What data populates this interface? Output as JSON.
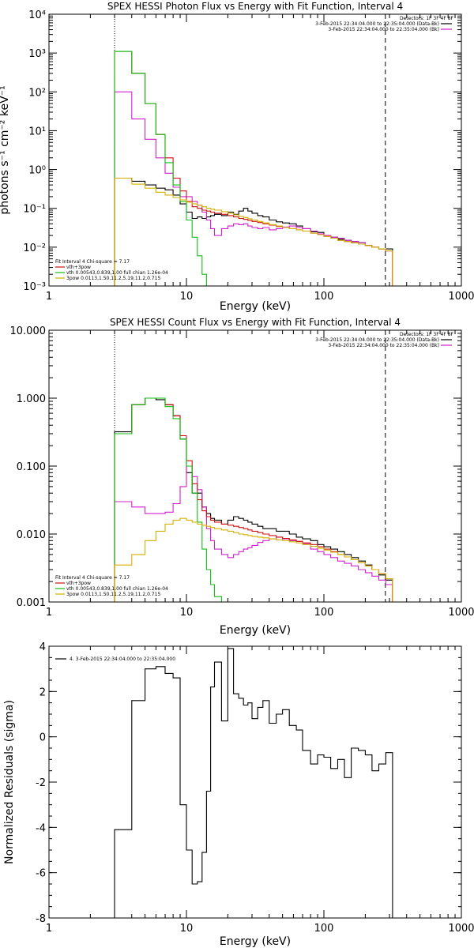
{
  "chart_data": [
    {
      "type": "line",
      "title": "SPEX HESSI Photon Flux vs Energy with Fit Function, Interval 4",
      "xlabel": "Energy (keV)",
      "ylabel": "photons s⁻¹ cm⁻² keV⁻¹",
      "xscale": "log",
      "yscale": "log",
      "xlim": [
        1,
        1000
      ],
      "ylim": [
        0.001,
        10000
      ],
      "xticks": [
        1,
        10,
        100,
        1000
      ],
      "xtick_labels": [
        "1",
        "10",
        "100",
        "1000"
      ],
      "yticks": [
        0.001,
        0.01,
        0.1,
        1,
        10,
        100,
        1000,
        10000
      ],
      "ytick_labels": [
        "10⁻³",
        "10⁻²",
        "10⁻¹",
        "10⁰",
        "10¹",
        "10²",
        "10³",
        "10⁴"
      ],
      "vlines": [
        {
          "x": 3,
          "style": "dotted"
        },
        {
          "x": 280,
          "style": "dashed"
        }
      ],
      "legend_top": {
        "header": "Detectors: 1F 3F 4F 8F",
        "entries": [
          {
            "text": "3-Feb-2015 22:34:04.000 to 22:35:04.000 (Data-Bk)",
            "color": "#000000"
          },
          {
            "text": "3-Feb-2015 22:34:04.000 to 22:35:04.000 (Bk)",
            "color": "#d020d0"
          }
        ]
      },
      "legend_bottom": {
        "header": "Fit Interval 4   Chi-square = 7.17",
        "entries": [
          {
            "text": "vth+3pow",
            "color": "#d01010"
          },
          {
            "text": "vth 0.00543,0.839,1.00  full chian 1.26e-04",
            "color": "#10c010"
          },
          {
            "text": "3pow 0.0113,1.50,11.2,5.19,11.2,0.715",
            "color": "#d4b000"
          }
        ]
      },
      "series": [
        {
          "name": "Data-Bk",
          "color": "#000000",
          "x": [
            3,
            4,
            5,
            6,
            7,
            8,
            9,
            10,
            11,
            12,
            13,
            14,
            15,
            16,
            18,
            20,
            22,
            24,
            26,
            28,
            30,
            33,
            36,
            40,
            45,
            50,
            56,
            63,
            70,
            80,
            90,
            100,
            112,
            126,
            141,
            158,
            178,
            200,
            224,
            251,
            282
          ],
          "y": [
            0.6,
            0.5,
            0.4,
            0.33,
            0.3,
            0.22,
            0.13,
            0.08,
            0.055,
            0.06,
            0.055,
            0.06,
            0.065,
            0.07,
            0.065,
            0.08,
            0.07,
            0.085,
            0.1,
            0.085,
            0.075,
            0.065,
            0.06,
            0.05,
            0.045,
            0.042,
            0.04,
            0.035,
            0.03,
            0.025,
            0.024,
            0.02,
            0.018,
            0.016,
            0.015,
            0.014,
            0.013,
            0.011,
            0.01,
            0.009,
            0.009
          ]
        },
        {
          "name": "Bk",
          "color": "#d020d0",
          "x": [
            3,
            4,
            5,
            6,
            7,
            8,
            9,
            10,
            11,
            12,
            13,
            14,
            15,
            16,
            18,
            20,
            22,
            24,
            26,
            28,
            30,
            33,
            36,
            40,
            45,
            50,
            56,
            63,
            70,
            80,
            90,
            100,
            112,
            126,
            141,
            158,
            178,
            200,
            224,
            251,
            282
          ],
          "y": [
            100,
            20,
            6,
            2,
            0.8,
            0.35,
            0.2,
            0.2,
            0.15,
            0.12,
            0.08,
            0.05,
            0.03,
            0.02,
            0.03,
            0.035,
            0.04,
            0.038,
            0.04,
            0.035,
            0.032,
            0.03,
            0.032,
            0.028,
            0.03,
            0.033,
            0.035,
            0.032,
            0.03,
            0.026,
            0.022,
            0.02,
            0.018,
            0.017,
            0.015,
            0.014,
            0.013,
            0.011,
            0.01,
            0.009,
            0.008
          ]
        },
        {
          "name": "vth+3pow",
          "color": "#d01010",
          "x": [
            3,
            4,
            5,
            6,
            7,
            8,
            9,
            10,
            11,
            12,
            13,
            14,
            15,
            16,
            18,
            20,
            22,
            24,
            26,
            28,
            30,
            33,
            36,
            40,
            45,
            50,
            56,
            63,
            70,
            80,
            90,
            100,
            112,
            126,
            141,
            158,
            178,
            200,
            224,
            251,
            282
          ],
          "y": [
            1100,
            300,
            50,
            8,
            2,
            0.6,
            0.28,
            0.15,
            0.11,
            0.1,
            0.09,
            0.085,
            0.08,
            0.075,
            0.07,
            0.065,
            0.06,
            0.055,
            0.052,
            0.049,
            0.046,
            0.043,
            0.04,
            0.037,
            0.034,
            0.032,
            0.03,
            0.028,
            0.026,
            0.023,
            0.021,
            0.019,
            0.017,
            0.015,
            0.014,
            0.013,
            0.012,
            0.011,
            0.01,
            0.009,
            0.008
          ]
        },
        {
          "name": "vth",
          "color": "#10c010",
          "x": [
            3,
            4,
            5,
            6,
            7,
            8,
            9,
            10,
            11,
            12,
            13,
            14
          ],
          "y": [
            1100,
            300,
            50,
            8,
            1.5,
            0.4,
            0.15,
            0.05,
            0.018,
            0.006,
            0.002,
            0.0007
          ]
        },
        {
          "name": "3pow",
          "color": "#d4b000",
          "x": [
            3,
            4,
            5,
            6,
            7,
            8,
            9,
            10,
            11,
            12,
            13,
            14,
            15,
            16,
            18,
            20,
            22,
            24,
            26,
            28,
            30,
            33,
            36,
            40,
            45,
            50,
            56,
            63,
            70,
            80,
            90,
            100,
            112,
            126,
            141,
            158,
            178,
            200,
            224,
            251,
            282
          ],
          "y": [
            0.6,
            0.42,
            0.33,
            0.26,
            0.22,
            0.19,
            0.165,
            0.145,
            0.13,
            0.12,
            0.11,
            0.1,
            0.095,
            0.09,
            0.082,
            0.075,
            0.068,
            0.062,
            0.058,
            0.054,
            0.05,
            0.046,
            0.042,
            0.038,
            0.035,
            0.032,
            0.03,
            0.028,
            0.026,
            0.023,
            0.021,
            0.019,
            0.017,
            0.015,
            0.014,
            0.013,
            0.012,
            0.011,
            0.01,
            0.009,
            0.008
          ]
        }
      ]
    },
    {
      "type": "line",
      "title": "SPEX HESSI Count Flux vs Energy with Fit Function, Interval 4",
      "xlabel": "Energy (keV)",
      "ylabel": "",
      "xscale": "log",
      "yscale": "log",
      "xlim": [
        1,
        1000
      ],
      "ylim": [
        0.001,
        10
      ],
      "xticks": [
        1,
        10,
        100,
        1000
      ],
      "xtick_labels": [
        "1",
        "10",
        "100",
        "1000"
      ],
      "yticks": [
        0.001,
        0.01,
        0.1,
        1,
        10
      ],
      "ytick_labels": [
        "0.001",
        "0.010",
        "0.100",
        "1.000",
        "10.000"
      ],
      "vlines": [
        {
          "x": 3,
          "style": "dotted"
        },
        {
          "x": 280,
          "style": "dashed"
        }
      ],
      "legend_top": {
        "header": "Detectors: 1F 3F 4F 8F",
        "entries": [
          {
            "text": "3-Feb-2015 22:34:04.000 to 22:35:04.000 (Data-Bk)",
            "color": "#000000"
          },
          {
            "text": "3-Feb-2015 22:34:04.000 to 22:35:04.000 (Bk)",
            "color": "#d020d0"
          }
        ]
      },
      "legend_bottom": {
        "header": "Fit Interval 4   Chi-square = 7.17",
        "entries": [
          {
            "text": "vth+3pow",
            "color": "#d01010"
          },
          {
            "text": "vth 0.00543,0.839,1.00  full chian 1.26e-04",
            "color": "#10c010"
          },
          {
            "text": "3pow 0.0113,1.50,11.2,5.19,11.2,0.715",
            "color": "#d4b000"
          }
        ]
      },
      "series": [
        {
          "name": "Data-Bk",
          "color": "#000000",
          "x": [
            3,
            4,
            5,
            6,
            7,
            8,
            9,
            10,
            11,
            12,
            13,
            14,
            15,
            16,
            18,
            20,
            22,
            24,
            26,
            28,
            30,
            33,
            36,
            40,
            45,
            50,
            56,
            63,
            70,
            80,
            90,
            100,
            112,
            126,
            141,
            158,
            178,
            200,
            224,
            251,
            282
          ],
          "y": [
            0.32,
            0.8,
            1.0,
            0.95,
            0.8,
            0.55,
            0.25,
            0.08,
            0.04,
            0.04,
            0.025,
            0.02,
            0.017,
            0.016,
            0.014,
            0.016,
            0.018,
            0.017,
            0.016,
            0.015,
            0.014,
            0.013,
            0.012,
            0.012,
            0.011,
            0.011,
            0.01,
            0.009,
            0.0085,
            0.008,
            0.007,
            0.0065,
            0.006,
            0.0055,
            0.005,
            0.0045,
            0.004,
            0.0035,
            0.003,
            0.0025,
            0.0021
          ]
        },
        {
          "name": "Bk",
          "color": "#d020d0",
          "x": [
            3,
            4,
            5,
            6,
            7,
            8,
            9,
            10,
            11,
            12,
            13,
            14,
            15,
            16,
            18,
            20,
            22,
            24,
            26,
            28,
            30,
            33,
            36,
            40,
            45,
            50,
            56,
            63,
            70,
            80,
            90,
            100,
            112,
            126,
            141,
            158,
            178,
            200,
            224,
            251,
            282
          ],
          "y": [
            0.03,
            0.025,
            0.02,
            0.02,
            0.021,
            0.028,
            0.05,
            0.1,
            0.07,
            0.045,
            0.025,
            0.012,
            0.008,
            0.006,
            0.005,
            0.0045,
            0.005,
            0.0055,
            0.006,
            0.0063,
            0.0068,
            0.0075,
            0.008,
            0.0085,
            0.009,
            0.0085,
            0.008,
            0.0078,
            0.0072,
            0.006,
            0.0055,
            0.005,
            0.0045,
            0.004,
            0.0037,
            0.0034,
            0.003,
            0.0027,
            0.0024,
            0.0021,
            0.0018
          ]
        },
        {
          "name": "vth+3pow",
          "color": "#d01010",
          "x": [
            3,
            4,
            5,
            6,
            7,
            8,
            9,
            10,
            11,
            12,
            13,
            14,
            15,
            16,
            18,
            20,
            22,
            24,
            26,
            28,
            30,
            33,
            36,
            40,
            45,
            50,
            56,
            63,
            70,
            80,
            90,
            100,
            112,
            126,
            141,
            158,
            178,
            200,
            224,
            251,
            282
          ],
          "y": [
            0.3,
            0.8,
            1.0,
            1.0,
            0.8,
            0.55,
            0.28,
            0.12,
            0.055,
            0.032,
            0.022,
            0.018,
            0.016,
            0.015,
            0.014,
            0.0135,
            0.013,
            0.0125,
            0.012,
            0.0115,
            0.011,
            0.0105,
            0.01,
            0.0095,
            0.009,
            0.0086,
            0.0082,
            0.0078,
            0.0074,
            0.007,
            0.0065,
            0.006,
            0.0055,
            0.005,
            0.0046,
            0.0042,
            0.0038,
            0.0034,
            0.003,
            0.0026,
            0.0022
          ]
        },
        {
          "name": "vth",
          "color": "#10c010",
          "x": [
            3,
            4,
            5,
            6,
            7,
            8,
            9,
            10,
            11,
            12,
            13,
            14,
            15,
            16,
            18
          ],
          "y": [
            0.3,
            0.8,
            1.0,
            1.0,
            0.75,
            0.5,
            0.25,
            0.1,
            0.04,
            0.015,
            0.006,
            0.003,
            0.0018,
            0.0012,
            0.0008
          ]
        },
        {
          "name": "3pow",
          "color": "#d4b000",
          "x": [
            3,
            4,
            5,
            6,
            7,
            8,
            9,
            10,
            11,
            12,
            13,
            14,
            15,
            16,
            18,
            20,
            22,
            24,
            26,
            28,
            30,
            33,
            36,
            40,
            45,
            50,
            56,
            63,
            70,
            80,
            90,
            100,
            112,
            126,
            141,
            158,
            178,
            200,
            224,
            251,
            282
          ],
          "y": [
            0.0035,
            0.005,
            0.008,
            0.011,
            0.014,
            0.016,
            0.017,
            0.016,
            0.015,
            0.014,
            0.0135,
            0.013,
            0.0125,
            0.012,
            0.0115,
            0.011,
            0.0105,
            0.01,
            0.0098,
            0.0095,
            0.0092,
            0.009,
            0.0088,
            0.0085,
            0.0082,
            0.008,
            0.0077,
            0.0074,
            0.007,
            0.0066,
            0.0062,
            0.0058,
            0.0054,
            0.005,
            0.0046,
            0.0042,
            0.0038,
            0.0034,
            0.003,
            0.0026,
            0.0022
          ]
        }
      ]
    },
    {
      "type": "line",
      "title": "",
      "xlabel": "Energy (keV)",
      "ylabel": "Normalized Residuals (sigma)",
      "xscale": "log",
      "yscale": "linear",
      "xlim": [
        1,
        1000
      ],
      "ylim": [
        -8,
        4
      ],
      "xticks": [
        1,
        10,
        100,
        1000
      ],
      "xtick_labels": [
        "1",
        "10",
        "100",
        "1000"
      ],
      "yticks": [
        -8,
        -6,
        -4,
        -2,
        0,
        2,
        4
      ],
      "ytick_labels": [
        "-8",
        "-6",
        "-4",
        "-2",
        "0",
        "2",
        "4"
      ],
      "vlines": [],
      "legend_top": {
        "header": "",
        "entries": [
          {
            "text": "4.  3-Feb-2015 22:34:04.000 to 22:35:04.000",
            "color": "#000000"
          }
        ]
      },
      "legend_bottom": {
        "header": "",
        "entries": []
      },
      "series": [
        {
          "name": "",
          "color": "#000000",
          "x": [
            3,
            4,
            5,
            6,
            7,
            8,
            9,
            10,
            11,
            12,
            13,
            14,
            15,
            16,
            18,
            20,
            22,
            24,
            26,
            28,
            30,
            33,
            36,
            40,
            45,
            50,
            56,
            63,
            70,
            80,
            90,
            100,
            112,
            126,
            141,
            158,
            178,
            200,
            224,
            251,
            282
          ],
          "y": [
            -4.1,
            1.6,
            3.0,
            3.1,
            2.8,
            2.6,
            -3.0,
            -5.0,
            -6.5,
            -6.4,
            -5.1,
            -2.4,
            2.2,
            3.3,
            0.7,
            3.9,
            1.9,
            1.7,
            1.4,
            1.5,
            0.8,
            1.3,
            1.6,
            0.6,
            1.0,
            1.2,
            0.5,
            0.3,
            -0.6,
            -1.2,
            -0.8,
            -0.9,
            -1.4,
            -1.0,
            -1.8,
            -0.5,
            -0.6,
            -0.8,
            -1.5,
            -1.2,
            -0.7
          ]
        }
      ]
    }
  ]
}
